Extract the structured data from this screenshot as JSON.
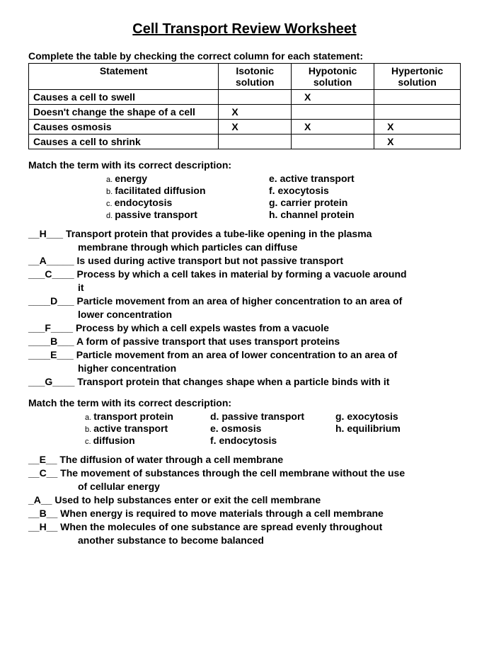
{
  "title": "Cell Transport Review Worksheet",
  "table_instruction": "Complete the table by checking the correct column for each statement:",
  "table": {
    "headers": [
      "Statement",
      "Isotonic solution",
      "Hypotonic solution",
      "Hypertonic solution"
    ],
    "rows": [
      {
        "statement": "Causes a cell to swell",
        "iso": "",
        "hypo": "X",
        "hyper": ""
      },
      {
        "statement": "Doesn't change the shape of a cell",
        "iso": "X",
        "hypo": "",
        "hyper": ""
      },
      {
        "statement": "Causes osmosis",
        "iso": "X",
        "hypo": "X",
        "hyper": "X"
      },
      {
        "statement": "Causes a cell to shrink",
        "iso": "",
        "hypo": "",
        "hyper": "X"
      }
    ]
  },
  "match1": {
    "instruction": "Match the term with its correct description:",
    "terms_left": [
      {
        "l": "a.",
        "t": "energy"
      },
      {
        "l": "b.",
        "t": "facilitated diffusion"
      },
      {
        "l": "c.",
        "t": "endocytosis"
      },
      {
        "l": "d.",
        "t": "passive transport"
      }
    ],
    "terms_right": [
      {
        "l": "e.",
        "t": "active transport"
      },
      {
        "l": "f.",
        "t": "exocytosis"
      },
      {
        "l": "g.",
        "t": "carrier protein"
      },
      {
        "l": "h.",
        "t": "channel protein"
      }
    ],
    "questions": [
      {
        "ans": "__H___",
        "text": "Transport protein that provides a tube-like opening in the plasma",
        "cont": "membrane through which particles can diffuse"
      },
      {
        "ans": "__A_____",
        "text": "Is used during active transport but not passive transport",
        "cont": ""
      },
      {
        "ans": "___C____",
        "text": "Process by which a cell takes in material by forming a vacuole around",
        "cont": "it"
      },
      {
        "ans": "____D___",
        "text": "Particle movement from an area of higher concentration to an area of",
        "cont": "lower concentration"
      },
      {
        "ans": "___F____",
        "text": "Process by which a cell expels wastes from a vacuole",
        "cont": ""
      },
      {
        "ans": "____B___",
        "text": "A form of passive transport that uses transport proteins",
        "cont": ""
      },
      {
        "ans": "____E___",
        "text": "Particle movement from an area of lower concentration to an area of",
        "cont": "higher concentration"
      },
      {
        "ans": "___G____",
        "text": "Transport protein that changes shape when a particle binds with it",
        "cont": ""
      }
    ]
  },
  "match2": {
    "instruction": "Match the term with its correct description:",
    "col1": [
      {
        "l": "a.",
        "t": "transport protein"
      },
      {
        "l": "b.",
        "t": "active transport"
      },
      {
        "l": "c.",
        "t": "diffusion"
      }
    ],
    "col2": [
      {
        "l": "d.",
        "t": "passive transport"
      },
      {
        "l": "e.",
        "t": "osmosis"
      },
      {
        "l": "f.",
        "t": "endocytosis"
      }
    ],
    "col3": [
      {
        "l": "g.",
        "t": "exocytosis"
      },
      {
        "l": "h.",
        "t": "equilibrium"
      }
    ],
    "questions": [
      {
        "ans": "__E__",
        "text": "The diffusion of water through a cell membrane",
        "cont": ""
      },
      {
        "ans": "__C__",
        "text": "The movement of substances through the cell membrane without the use",
        "cont": "of cellular energy"
      },
      {
        "ans": "_A__",
        "text": "Used to help substances enter or exit the cell membrane",
        "cont": ""
      },
      {
        "ans": "__B__",
        "text": "When energy is required to move materials through a cell membrane",
        "cont": ""
      },
      {
        "ans": "__H__",
        "text": "When the molecules of one substance are spread evenly throughout",
        "cont": "another substance to become balanced"
      }
    ]
  }
}
